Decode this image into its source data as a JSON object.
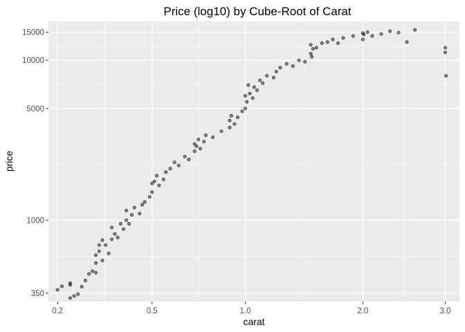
{
  "chart_data": {
    "type": "scatter",
    "title": "Price (log10) by Cube-Root of Carat",
    "xlabel": "carat",
    "ylabel": "price",
    "x_scale": "cube-root",
    "y_scale": "log10",
    "xlim": [
      0.18,
      3.2
    ],
    "ylim": [
      310,
      17500
    ],
    "x_ticks": [
      0.2,
      0.5,
      1.0,
      2.0,
      3.0
    ],
    "x_tick_labels": [
      "0.2",
      "0.5",
      "1.0",
      "2.0",
      "3.0"
    ],
    "y_ticks": [
      350,
      1000,
      5000,
      10000,
      15000
    ],
    "y_tick_labels": [
      "350",
      "1000",
      "5000",
      "10000",
      "15000"
    ],
    "grid": true,
    "legend": "none",
    "colors": {
      "panel_background": "#ebebeb",
      "grid_major": "#ffffff",
      "points": "#000000"
    },
    "series": [
      {
        "points": [
          [
            0.2,
            367
          ],
          [
            0.21,
            386
          ],
          [
            0.23,
            404
          ],
          [
            0.23,
            326
          ],
          [
            0.23,
            394
          ],
          [
            0.24,
            336
          ],
          [
            0.25,
            345
          ],
          [
            0.26,
            384
          ],
          [
            0.27,
            420
          ],
          [
            0.28,
            462
          ],
          [
            0.29,
            480
          ],
          [
            0.3,
            470
          ],
          [
            0.3,
            540
          ],
          [
            0.3,
            605
          ],
          [
            0.31,
            640
          ],
          [
            0.31,
            700
          ],
          [
            0.32,
            560
          ],
          [
            0.32,
            750
          ],
          [
            0.33,
            700
          ],
          [
            0.34,
            620
          ],
          [
            0.35,
            760
          ],
          [
            0.35,
            900
          ],
          [
            0.36,
            820
          ],
          [
            0.37,
            780
          ],
          [
            0.38,
            950
          ],
          [
            0.39,
            880
          ],
          [
            0.4,
            1000
          ],
          [
            0.4,
            1150
          ],
          [
            0.41,
            950
          ],
          [
            0.42,
            1080
          ],
          [
            0.43,
            1200
          ],
          [
            0.45,
            1100
          ],
          [
            0.46,
            1250
          ],
          [
            0.47,
            1300
          ],
          [
            0.49,
            1400
          ],
          [
            0.5,
            1500
          ],
          [
            0.5,
            1700
          ],
          [
            0.51,
            1750
          ],
          [
            0.52,
            1900
          ],
          [
            0.53,
            1650
          ],
          [
            0.55,
            1800
          ],
          [
            0.56,
            2000
          ],
          [
            0.58,
            2100
          ],
          [
            0.6,
            2300
          ],
          [
            0.62,
            2200
          ],
          [
            0.65,
            2500
          ],
          [
            0.67,
            2400
          ],
          [
            0.7,
            2700
          ],
          [
            0.7,
            3000
          ],
          [
            0.71,
            2900
          ],
          [
            0.72,
            3200
          ],
          [
            0.73,
            2800
          ],
          [
            0.75,
            3100
          ],
          [
            0.76,
            3400
          ],
          [
            0.8,
            3300
          ],
          [
            0.85,
            3600
          ],
          [
            0.9,
            3800
          ],
          [
            0.9,
            4200
          ],
          [
            0.91,
            4500
          ],
          [
            0.93,
            4000
          ],
          [
            0.95,
            4400
          ],
          [
            0.98,
            4800
          ],
          [
            1.0,
            5000
          ],
          [
            1.0,
            6000
          ],
          [
            1.01,
            5500
          ],
          [
            1.02,
            7000
          ],
          [
            1.03,
            6200
          ],
          [
            1.05,
            5800
          ],
          [
            1.06,
            6800
          ],
          [
            1.08,
            6500
          ],
          [
            1.1,
            7500
          ],
          [
            1.12,
            7200
          ],
          [
            1.15,
            8000
          ],
          [
            1.2,
            7800
          ],
          [
            1.22,
            8500
          ],
          [
            1.25,
            9000
          ],
          [
            1.3,
            9500
          ],
          [
            1.35,
            9200
          ],
          [
            1.4,
            10000
          ],
          [
            1.45,
            9800
          ],
          [
            1.5,
            11000
          ],
          [
            1.5,
            12500
          ],
          [
            1.51,
            10500
          ],
          [
            1.52,
            11800
          ],
          [
            1.55,
            12000
          ],
          [
            1.6,
            12800
          ],
          [
            1.65,
            13000
          ],
          [
            1.7,
            13500
          ],
          [
            1.75,
            12800
          ],
          [
            1.8,
            13800
          ],
          [
            1.9,
            14200
          ],
          [
            2.0,
            14800
          ],
          [
            2.0,
            13500
          ],
          [
            2.01,
            14500
          ],
          [
            2.05,
            15000
          ],
          [
            2.1,
            14200
          ],
          [
            2.2,
            14600
          ],
          [
            2.3,
            15200
          ],
          [
            2.4,
            14900
          ],
          [
            2.5,
            13000
          ],
          [
            2.6,
            15500
          ],
          [
            3.0,
            11200
          ],
          [
            3.01,
            8000
          ],
          [
            3.0,
            12000
          ]
        ]
      }
    ]
  }
}
